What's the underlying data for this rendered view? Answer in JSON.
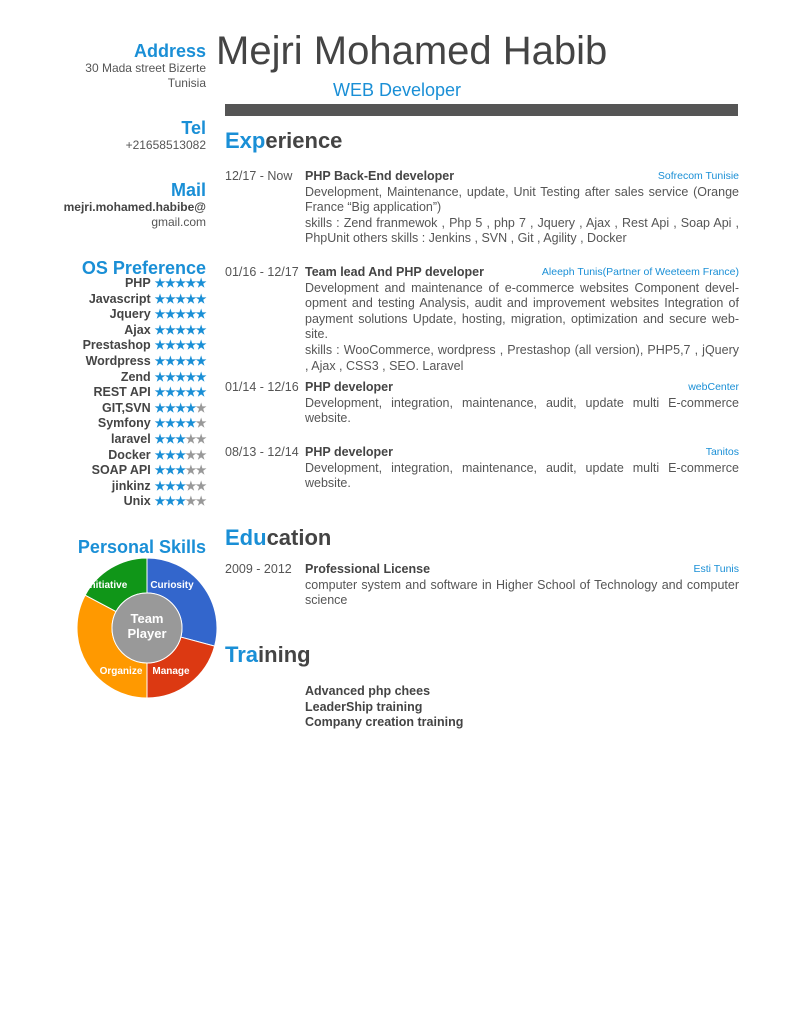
{
  "header": {
    "name": "Mejri Mohamed Habib",
    "role": "WEB Developer",
    "accent": "#1a8fd6",
    "bar_color": "#555555"
  },
  "contact": {
    "address_label": "Address",
    "address_line1": "30 Mada street Bizerte",
    "address_line2": "Tunisia",
    "tel_label": "Tel",
    "tel": "+21658513082",
    "mail_label": "Mail",
    "mail_line1": "mejri.mohamed.habibe@",
    "mail_line2": "gmail.com"
  },
  "os_preference": {
    "title": "OS Preference",
    "max_stars": 5,
    "items": [
      {
        "name": "PHP",
        "rating": 5
      },
      {
        "name": "Javascript",
        "rating": 5
      },
      {
        "name": "Jquery",
        "rating": 5
      },
      {
        "name": "Ajax",
        "rating": 5
      },
      {
        "name": "Prestashop",
        "rating": 5
      },
      {
        "name": "Wordpress",
        "rating": 5
      },
      {
        "name": "Zend",
        "rating": 5
      },
      {
        "name": "REST API",
        "rating": 5
      },
      {
        "name": "GIT,SVN",
        "rating": 4
      },
      {
        "name": "Symfony",
        "rating": 4
      },
      {
        "name": "laravel",
        "rating": 3
      },
      {
        "name": "Docker",
        "rating": 3
      },
      {
        "name": "SOAP API",
        "rating": 3
      },
      {
        "name": "jinkinz",
        "rating": 3
      },
      {
        "name": "Unix",
        "rating": 3
      }
    ]
  },
  "personal_skills": {
    "title": "Personal Skills",
    "center_line1": "Team",
    "center_line2": "Player",
    "segments": [
      {
        "label": "Curiosity",
        "color": "#3366cc"
      },
      {
        "label": "Manage",
        "color": "#dc3912"
      },
      {
        "label": "Organize",
        "color": "#ff9900"
      },
      {
        "label": "Initiative",
        "color": "#109618"
      }
    ],
    "center_color": "#999999"
  },
  "experience": {
    "title_accent": "Exp",
    "title_rest": "erience",
    "entries": [
      {
        "date": "12/17 - Now",
        "title": "PHP Back-End developer",
        "company": "Sofrecom Tunisie",
        "lines": [
          "Development, Maintenance, update, Unit Testing after sales service (Orange France “Big application”)",
          "skills : Zend franmewok , Php 5 , php 7 , Jquery , Ajax , Rest Api , Soap Api , PhpUnit others skills : Jenkins , SVN , Git , Agility , Docker"
        ]
      },
      {
        "date": "01/16 - 12/17",
        "title": "Team lead And PHP developer",
        "company": "Aleeph Tunis(Partner of Weeteem France)",
        "lines": [
          "Development and maintenance of e-commerce websites Component devel­opment and testing Analysis, audit and improvement websites Integration of payment solutions Update, hosting, migration, optimization and secure web­site.",
          "skills : WooCommerce, wordpress , Prestashop (all version), PHP5,7 , jQuery , Ajax , CSS3 , SEO. Laravel"
        ]
      },
      {
        "date": "01/14 - 12/16",
        "title": "PHP developer",
        "company": "webCenter",
        "lines": [
          "Development, integration, maintenance, audit, update multi E-commerce website."
        ]
      },
      {
        "date": "08/13 - 12/14",
        "title": "PHP developer",
        "company": "Tanitos",
        "lines": [
          "Development, integration, maintenance, audit, update multi E-commerce website."
        ]
      }
    ]
  },
  "education": {
    "title_accent": "Edu",
    "title_rest": "cation",
    "entries": [
      {
        "date": "2009 - 2012",
        "title": "Professional License",
        "company": "Esti Tunis",
        "lines": [
          "computer system and software in Higher School of Technology and computer science"
        ]
      }
    ]
  },
  "training": {
    "title_accent": "Tra",
    "title_rest": "ining",
    "items": [
      "Advanced php chees",
      "LeaderShip training",
      "Company creation training"
    ]
  }
}
